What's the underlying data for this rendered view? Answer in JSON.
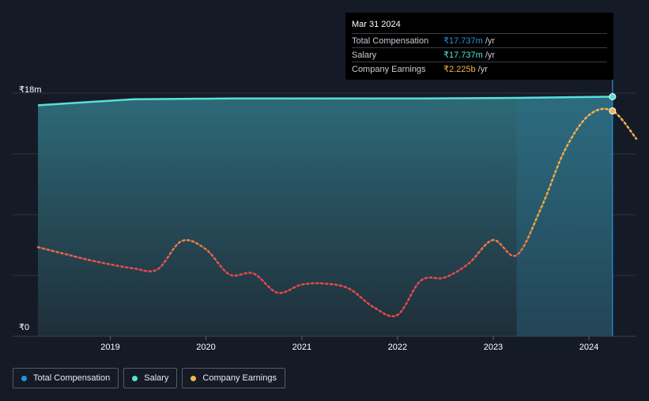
{
  "chart_data": {
    "type": "area",
    "y_unit_prefix": "₹",
    "ylim": [
      0,
      18
    ],
    "yticks": [
      {
        "value": 18,
        "label": "₹18m"
      },
      {
        "value": 0,
        "label": "₹0"
      }
    ],
    "xlim": [
      "2018-03-31",
      "2024-06-30"
    ],
    "xticks": [
      {
        "value": "2019-01-01",
        "label": "2019"
      },
      {
        "value": "2020-01-01",
        "label": "2020"
      },
      {
        "value": "2021-01-01",
        "label": "2021"
      },
      {
        "value": "2022-01-01",
        "label": "2022"
      },
      {
        "value": "2023-01-01",
        "label": "2023"
      },
      {
        "value": "2024-01-01",
        "label": "2024"
      }
    ],
    "series": [
      {
        "name": "Total Compensation",
        "color": "#2394df",
        "points": [
          [
            "2018-03-31",
            17.1
          ],
          [
            "2019-03-31",
            17.55
          ],
          [
            "2020-03-31",
            17.6
          ],
          [
            "2021-03-31",
            17.6
          ],
          [
            "2022-03-31",
            17.6
          ],
          [
            "2023-03-31",
            17.65
          ],
          [
            "2024-03-31",
            17.737
          ]
        ]
      },
      {
        "name": "Salary",
        "color": "#58e0d8",
        "points": [
          [
            "2018-03-31",
            17.1
          ],
          [
            "2019-03-31",
            17.55
          ],
          [
            "2020-03-31",
            17.6
          ],
          [
            "2021-03-31",
            17.6
          ],
          [
            "2022-03-31",
            17.6
          ],
          [
            "2023-03-31",
            17.65
          ],
          [
            "2024-03-31",
            17.737
          ]
        ]
      },
      {
        "name": "Company Earnings",
        "color": "#f2b550",
        "unit": "b",
        "ylim": [
          0,
          2.4
        ],
        "points": [
          [
            "2018-03-31",
            0.88
          ],
          [
            "2018-06-30",
            0.82
          ],
          [
            "2018-09-30",
            0.76
          ],
          [
            "2018-12-31",
            0.71
          ],
          [
            "2019-03-31",
            0.67
          ],
          [
            "2019-06-30",
            0.66
          ],
          [
            "2019-09-30",
            0.94
          ],
          [
            "2019-12-31",
            0.86
          ],
          [
            "2020-03-31",
            0.61
          ],
          [
            "2020-06-30",
            0.62
          ],
          [
            "2020-09-30",
            0.43
          ],
          [
            "2020-12-31",
            0.51
          ],
          [
            "2021-03-31",
            0.52
          ],
          [
            "2021-06-30",
            0.47
          ],
          [
            "2021-09-30",
            0.29
          ],
          [
            "2021-12-31",
            0.21
          ],
          [
            "2022-03-31",
            0.55
          ],
          [
            "2022-06-30",
            0.58
          ],
          [
            "2022-09-30",
            0.72
          ],
          [
            "2022-12-31",
            0.95
          ],
          [
            "2023-03-31",
            0.8
          ],
          [
            "2023-06-30",
            1.25
          ],
          [
            "2023-09-30",
            1.83
          ],
          [
            "2023-12-31",
            2.18
          ],
          [
            "2024-03-31",
            2.225
          ],
          [
            "2024-06-30",
            1.95
          ]
        ]
      }
    ],
    "legend_position": "bottom-left",
    "grid": true
  },
  "tooltip": {
    "date": "Mar 31 2024",
    "rows": [
      {
        "label": "Total Compensation",
        "value": "₹17.737m",
        "unit": "/yr",
        "color": "#2394df"
      },
      {
        "label": "Salary",
        "value": "₹17.737m",
        "unit": "/yr",
        "color": "#58e0d8"
      },
      {
        "label": "Company Earnings",
        "value": "₹2.225b",
        "unit": "/yr",
        "color": "#f2b550"
      }
    ]
  },
  "legend": [
    {
      "label": "Total Compensation",
      "color": "#2394df"
    },
    {
      "label": "Salary",
      "color": "#58e0d8"
    },
    {
      "label": "Company Earnings",
      "color": "#f2b550"
    }
  ]
}
